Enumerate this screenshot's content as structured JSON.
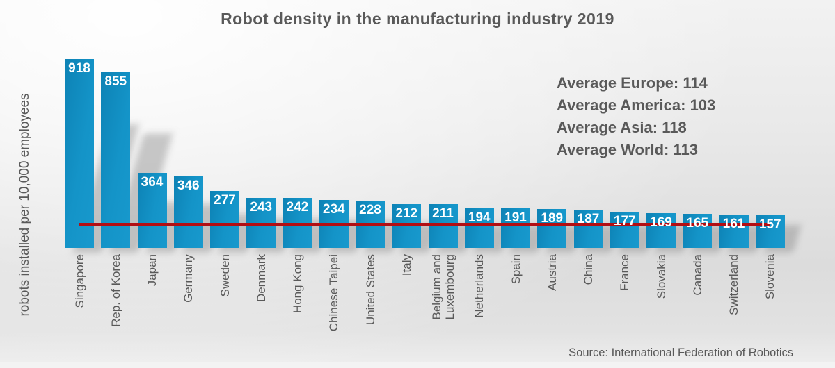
{
  "title": "Robot density in the manufacturing industry 2019",
  "ylabel": "robots installed per 10,000 employees",
  "source": "Source: International Federation of Robotics",
  "averages": [
    {
      "label": "Average Europe",
      "value": 114
    },
    {
      "label": "Average America",
      "value": 103
    },
    {
      "label": "Average Asia",
      "value": 118
    },
    {
      "label": "Average World",
      "value": 113
    }
  ],
  "chart_data": {
    "type": "bar",
    "title": "Robot density in the manufacturing industry 2019",
    "xlabel": "",
    "ylabel": "robots installed per 10,000 employees",
    "ylim": [
      0,
      960
    ],
    "grid": false,
    "legend": false,
    "bar_color": "#1494c8",
    "categories": [
      "Singapore",
      "Rep. of Korea",
      "Japan",
      "Germany",
      "Sweden",
      "Denmark",
      "Hong Kong",
      "Chinese Taipei",
      "United States",
      "Italy",
      "Belgium and Luxembourg",
      "Netherlands",
      "Spain",
      "Austria",
      "China",
      "France",
      "Slovakia",
      "Canada",
      "Switzerland",
      "Slovenia"
    ],
    "values": [
      918,
      855,
      364,
      346,
      277,
      243,
      242,
      234,
      228,
      212,
      211,
      194,
      191,
      189,
      187,
      177,
      169,
      165,
      161,
      157
    ],
    "reference_line": {
      "label": "Average World",
      "value": 113,
      "color": "#b30e13"
    },
    "annotations": [
      "Average Europe: 114",
      "Average America: 103",
      "Average Asia: 118",
      "Average World: 113"
    ]
  }
}
